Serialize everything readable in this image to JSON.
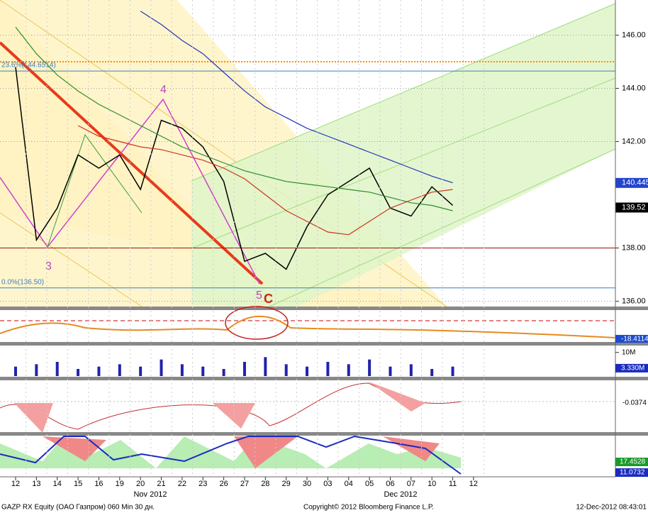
{
  "chart_data": {
    "type": "line",
    "categories": [
      "12",
      "13",
      "14",
      "15",
      "16",
      "19",
      "20",
      "21",
      "22",
      "23",
      "26",
      "27",
      "28",
      "29",
      "30",
      "03",
      "04",
      "05",
      "06",
      "07",
      "10",
      "11",
      "12"
    ],
    "x_groups": [
      "Nov 2012",
      "Dec 2012"
    ],
    "ylim": [
      135.8,
      147.32
    ],
    "yticks": [
      {
        "value": 136,
        "label": "136.00"
      },
      {
        "value": 138,
        "label": "138.00"
      },
      {
        "value": 142,
        "label": "142.00"
      },
      {
        "value": 144,
        "label": "144.00"
      },
      {
        "value": 146,
        "label": "146.00"
      }
    ],
    "grid": true,
    "series": [
      {
        "color": "#000000",
        "values": [
          144.8,
          138.3,
          139.5,
          141.5,
          141.0,
          141.5,
          140.2,
          142.8,
          142.5,
          141.8,
          140.5,
          137.5,
          137.8,
          137.2,
          138.8,
          140.0,
          140.5,
          141.0,
          139.5,
          139.2,
          140.3,
          139.6,
          null
        ]
      },
      {
        "color": "#2233bb",
        "values": [
          null,
          null,
          null,
          null,
          null,
          null,
          146.9,
          146.4,
          145.8,
          145.3,
          144.6,
          143.9,
          143.3,
          142.9,
          142.5,
          142.2,
          141.9,
          141.6,
          141.3,
          141.0,
          140.7,
          140.45,
          null
        ]
      },
      {
        "color": "#2e8b2e",
        "values": [
          146.3,
          145.3,
          144.5,
          143.9,
          143.4,
          143.0,
          142.6,
          142.2,
          141.8,
          141.5,
          141.2,
          140.9,
          140.7,
          140.5,
          140.4,
          140.3,
          140.2,
          140.1,
          139.9,
          139.7,
          139.6,
          139.4,
          null
        ]
      },
      {
        "color": "#cc3322",
        "values": [
          null,
          null,
          null,
          142.6,
          142.2,
          142.0,
          141.8,
          141.7,
          141.5,
          141.3,
          141.0,
          140.6,
          140.0,
          139.4,
          139.0,
          138.6,
          138.5,
          139.0,
          139.5,
          139.8,
          140.1,
          140.2,
          null
        ]
      }
    ],
    "levels": [
      {
        "value": 145.0,
        "color": "#ff8c00"
      },
      {
        "value": 144.6514,
        "color": "#3a7fc0",
        "label": "23.6%(144.6514)"
      },
      {
        "value": 138.0,
        "color": "#a01010"
      },
      {
        "value": 136.5,
        "color": "#3a7fc0",
        "label": "0.0%(136.50)"
      }
    ],
    "last_values": [
      {
        "value": 140.445,
        "color": "#2244cc"
      },
      {
        "value": 139.52,
        "color": "#000000"
      }
    ],
    "annotations": [
      "3",
      "4",
      "5",
      "C"
    ],
    "volume": {
      "color": "#2222aa",
      "ylim": [
        0,
        12
      ],
      "yticks": [
        {
          "value": 10,
          "label": "10M"
        }
      ],
      "values": [
        4,
        5,
        6,
        3,
        4,
        5,
        4,
        7,
        5,
        4,
        3,
        6,
        8,
        5,
        4,
        6,
        5,
        7,
        4,
        5,
        3,
        4,
        null
      ],
      "last": {
        "value": 3.33,
        "label": "3.330M"
      }
    },
    "indicator_values": [
      -18.4114,
      -0.0374,
      17.4528,
      11.0732
    ]
  },
  "footer": {
    "left": "GAZP RX Equity (OAO Газпром) 060 Min 30 дн.",
    "center": "Copyright© 2012 Bloomberg Finance L.P.",
    "right": "12-Dec-2012 08:43:01"
  }
}
